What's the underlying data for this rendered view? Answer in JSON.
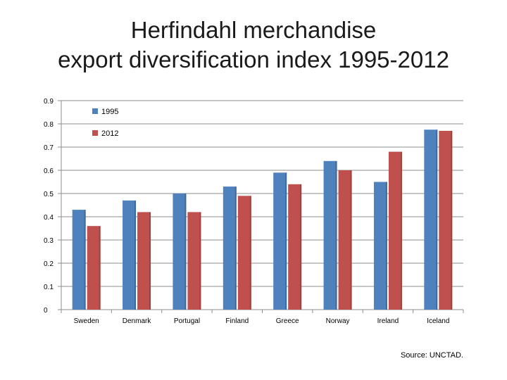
{
  "slide": {
    "title_line1": "Herfindahl merchandise",
    "title_line2": "export diversification index 1995-2012",
    "source": "Source: UNCTAD."
  },
  "chart_data": {
    "type": "bar",
    "title": "",
    "xlabel": "",
    "ylabel": "",
    "ylim": [
      0,
      0.9
    ],
    "yticks": [
      0,
      0.1,
      0.2,
      0.3,
      0.4,
      0.5,
      0.6,
      0.7,
      0.8,
      0.9
    ],
    "ytick_labels": [
      "0",
      "0.1",
      "0.2",
      "0.3",
      "0.4",
      "0.5",
      "0.6",
      "0.7",
      "0.8",
      "0.9"
    ],
    "grid": true,
    "legend_position": "top-left",
    "categories": [
      "Sweden",
      "Denmark",
      "Portugal",
      "Finland",
      "Greece",
      "Norway",
      "Ireland",
      "Iceland"
    ],
    "series": [
      {
        "name": "1995",
        "color": "#4f81bd",
        "values": [
          0.43,
          0.47,
          0.5,
          0.53,
          0.59,
          0.64,
          0.55,
          0.775
        ]
      },
      {
        "name": "2012",
        "color": "#c0504d",
        "values": [
          0.36,
          0.42,
          0.42,
          0.49,
          0.54,
          0.6,
          0.68,
          0.77
        ]
      }
    ]
  }
}
